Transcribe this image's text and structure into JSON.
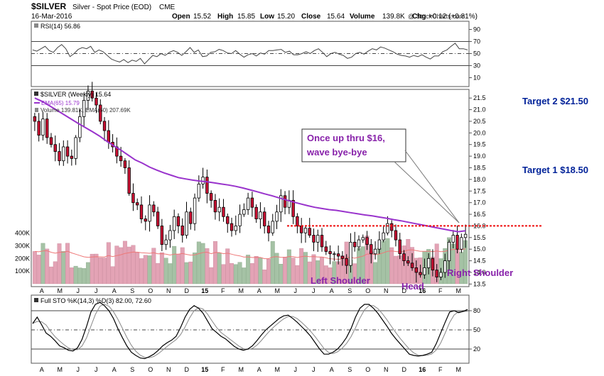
{
  "header": {
    "symbol": "$SILVER",
    "name": "Silver - Spot Price (EOD)",
    "exchange": "CME",
    "date": "16-Mar-2016",
    "open_label": "Open",
    "open": "15.52",
    "high_label": "High",
    "high": "15.85",
    "low_label": "Low",
    "low": "15.20",
    "close_label": "Close",
    "close": "15.64",
    "volume_label": "Volume",
    "volume": "139.8K",
    "chg_label": "Chg",
    "chg": "+0.12 (+0.81%)",
    "watermark": "@ StockCharts.com"
  },
  "colors": {
    "up": "#ffffff",
    "down": "#cc1133",
    "outline": "#000000",
    "ema": "#9933cc",
    "vol_up": "#a5c2a5",
    "vol_down": "#e3a3b5",
    "vol_ema": "#ee7777",
    "resistance": "#ee1111",
    "target": "#002299",
    "annotation": "#8822aa",
    "panel_bg": "#ffffff"
  },
  "chart_data": [
    {
      "type": "line",
      "title": "RSI(14) 56.86",
      "y_ticks": [
        10,
        30,
        50,
        70,
        90
      ],
      "ylim": [
        0,
        100
      ],
      "ref_lines": [
        30,
        50,
        70
      ],
      "values": [
        56,
        54,
        58,
        62,
        55,
        52,
        60,
        65,
        58,
        45,
        50,
        57,
        60,
        58,
        62,
        52,
        56,
        53,
        47,
        41,
        38,
        36,
        40,
        35,
        39,
        37,
        42,
        33,
        40,
        47,
        45,
        50,
        47,
        52,
        55,
        52,
        47,
        53,
        60,
        52,
        56,
        45,
        46,
        52,
        53,
        57,
        55,
        51,
        50,
        55,
        49,
        44,
        48,
        50,
        46,
        51,
        49,
        55,
        55,
        56,
        57,
        52,
        54,
        48,
        48,
        50,
        53,
        50,
        55,
        58,
        52,
        45,
        50,
        52,
        49,
        47,
        42,
        44,
        50,
        52,
        49,
        54,
        58,
        56,
        61,
        59,
        56,
        53,
        49,
        47,
        46,
        44,
        47,
        45,
        48,
        44,
        41,
        46,
        46,
        53,
        56,
        62,
        67,
        58,
        58,
        56
      ]
    },
    {
      "type": "candlestick",
      "title": "$SILVER (Weekly) 15.64",
      "ema_label": "EMA(65) 15.79",
      "volume_label": "Volume 139.81K, EMA(60) 207.69K",
      "y_ticks": [
        13.5,
        14.0,
        14.5,
        15.0,
        15.5,
        16.0,
        16.5,
        17.0,
        17.5,
        18.0,
        18.5,
        19.0,
        19.5,
        20.0,
        20.5,
        21.0,
        21.5
      ],
      "ylim": [
        13.45,
        21.75
      ],
      "vol_ticks": [
        100,
        200,
        300,
        400
      ],
      "vol_tick_labels": [
        "100K",
        "200K",
        "300K",
        "400K"
      ],
      "vol_max": 560,
      "x_labels": [
        "A",
        "M",
        "J",
        "J",
        "A",
        "S",
        "O",
        "N",
        "D",
        "15",
        "F",
        "M",
        "A",
        "M",
        "J",
        "J",
        "A",
        "S",
        "O",
        "N",
        "D",
        "16",
        "F",
        "M"
      ],
      "resistance": 16.0,
      "closes": [
        20.5,
        19.9,
        20.6,
        19.8,
        19.5,
        19.2,
        18.8,
        19.4,
        19.0,
        18.9,
        19.8,
        20.7,
        21.4,
        21.8,
        21.5,
        21.2,
        20.5,
        20.1,
        19.6,
        19.4,
        19.0,
        18.8,
        18.5,
        17.4,
        17.0,
        16.9,
        16.3,
        16.2,
        16.9,
        16.6,
        16.0,
        15.2,
        15.4,
        15.8,
        16.4,
        16.0,
        15.6,
        16.6,
        16.1,
        17.2,
        17.8,
        18.1,
        17.4,
        17.1,
        16.6,
        16.8,
        16.4,
        16.1,
        15.8,
        16.0,
        16.5,
        16.7,
        17.2,
        16.8,
        16.3,
        16.6,
        16.0,
        15.7,
        16.2,
        16.6,
        17.3,
        16.8,
        17.1,
        16.4,
        16.0,
        15.7,
        15.9,
        15.6,
        15.3,
        15.6,
        15.1,
        14.9,
        14.8,
        14.8,
        14.7,
        14.6,
        14.3,
        15.3,
        15.1,
        15.4,
        15.5,
        15.2,
        14.8,
        15.0,
        15.4,
        15.7,
        16.1,
        15.8,
        15.4,
        14.8,
        14.5,
        14.4,
        14.2,
        14.0,
        13.9,
        14.2,
        14.6,
        14.1,
        13.8,
        14.0,
        14.5,
        15.3,
        15.6,
        15.0,
        15.5,
        15.64
      ],
      "ema65": [
        21.5,
        21.36,
        21.18,
        20.99,
        20.8,
        20.61,
        20.42,
        20.24,
        20.06,
        19.87,
        19.65,
        19.45,
        19.26,
        19.05,
        18.84,
        18.7,
        18.53,
        18.4,
        18.28,
        18.18,
        18.08,
        18.02,
        17.97,
        17.93,
        17.9,
        17.85,
        17.8,
        17.76,
        17.7,
        17.63,
        17.55,
        17.47,
        17.38,
        17.3,
        17.21,
        17.12,
        17.03,
        16.95,
        16.87,
        16.8,
        16.75,
        16.7,
        16.67,
        16.62,
        16.57,
        16.52,
        16.47,
        16.43,
        16.38,
        16.33,
        16.27,
        16.22,
        16.16,
        16.1,
        16.04,
        15.98,
        15.92,
        15.86,
        15.8,
        15.75,
        15.79
      ]
    },
    {
      "type": "line",
      "title": "Full STO %K(14,3) %D(3) 82.00, 72.60",
      "y_ticks": [
        20,
        50,
        80
      ],
      "ylim": [
        0,
        100
      ],
      "ref_lines": [
        20,
        50,
        80
      ],
      "k_values": [
        60,
        70,
        58,
        45,
        40,
        33,
        25,
        22,
        18,
        17,
        22,
        35,
        55,
        78,
        90,
        93,
        88,
        80,
        68,
        52,
        38,
        25,
        15,
        10,
        6,
        5,
        8,
        12,
        18,
        25,
        30,
        34,
        40,
        54,
        70,
        82,
        88,
        84,
        76,
        64,
        52,
        46,
        40,
        36,
        30,
        24,
        20,
        18,
        20,
        25,
        33,
        42,
        50,
        56,
        62,
        68,
        72,
        73,
        68,
        62,
        55,
        48,
        40,
        30,
        20,
        12,
        12,
        15,
        20,
        28,
        38,
        52,
        70,
        84,
        90,
        90,
        84,
        76,
        66,
        56,
        45,
        36,
        28,
        20,
        12,
        10,
        9,
        10,
        12,
        15,
        28,
        45,
        62,
        78,
        80,
        77,
        79,
        82
      ]
    }
  ],
  "annotations": {
    "callout_line1": "Once up thru $16,",
    "callout_line2": "wave bye-bye",
    "target2": "Target 2 $21.50",
    "target1": "Target 1 $18.50",
    "left_shoulder": "Left Shoulder",
    "head": "Head",
    "right_shoulder": "Right Shoulder"
  }
}
